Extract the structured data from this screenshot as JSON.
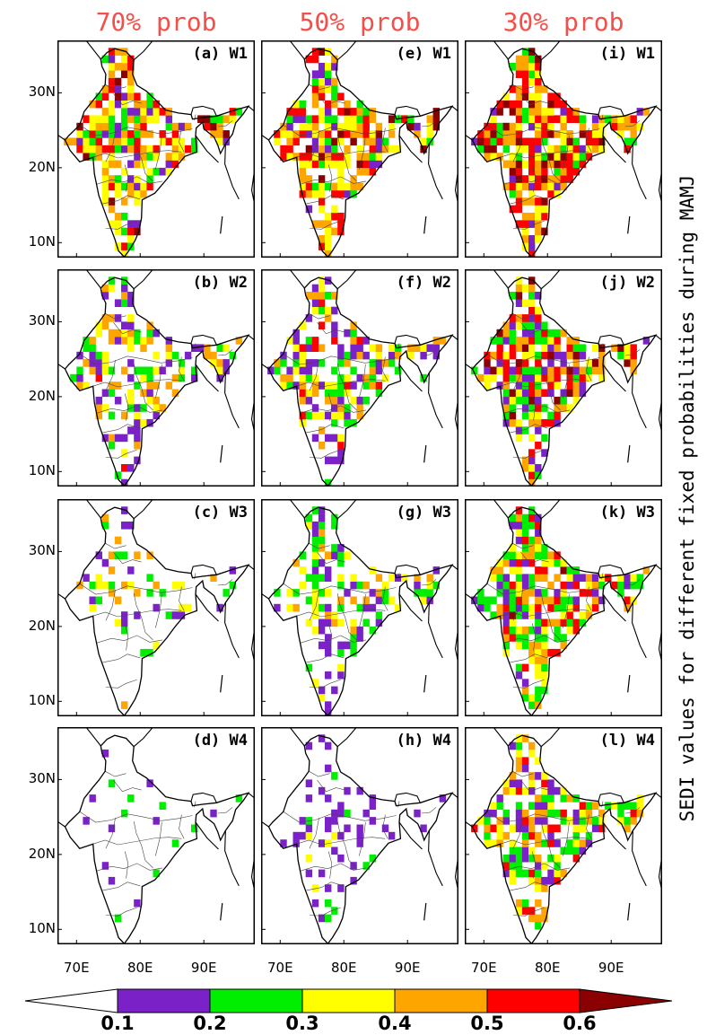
{
  "column_titles": [
    "70% prob",
    "50% prob",
    "30% prob"
  ],
  "side_title": "SEDI values for different fixed probabilities during MAMJ",
  "y_tick_labels": [
    "30N",
    "20N",
    "10N"
  ],
  "x_tick_labels": [
    "70E",
    "80E",
    "90E"
  ],
  "panels": [
    {
      "label": "(a) W1",
      "column": 0,
      "row": 0
    },
    {
      "label": "(b) W2",
      "column": 0,
      "row": 1
    },
    {
      "label": "(c) W3",
      "column": 0,
      "row": 2
    },
    {
      "label": "(d) W4",
      "column": 0,
      "row": 3
    },
    {
      "label": "(e) W1",
      "column": 1,
      "row": 0
    },
    {
      "label": "(f) W2",
      "column": 1,
      "row": 1
    },
    {
      "label": "(g) W3",
      "column": 1,
      "row": 2
    },
    {
      "label": "(h) W4",
      "column": 1,
      "row": 3
    },
    {
      "label": "(i) W1",
      "column": 2,
      "row": 0
    },
    {
      "label": "(j) W2",
      "column": 2,
      "row": 1
    },
    {
      "label": "(k) W3",
      "column": 2,
      "row": 2
    },
    {
      "label": "(l) W4",
      "column": 2,
      "row": 3
    }
  ],
  "colorbar": {
    "labels": [
      "0.1",
      "0.2",
      "0.3",
      "0.4",
      "0.5",
      "0.6"
    ],
    "colors": [
      "#ffffff",
      "#7a22c8",
      "#00ee00",
      "#ffff00",
      "#ffa500",
      "#ff0000",
      "#8b0000"
    ]
  },
  "map_extent": {
    "lon_min": 67,
    "lon_max": 98,
    "lat_min": 8,
    "lat_max": 37
  }
}
